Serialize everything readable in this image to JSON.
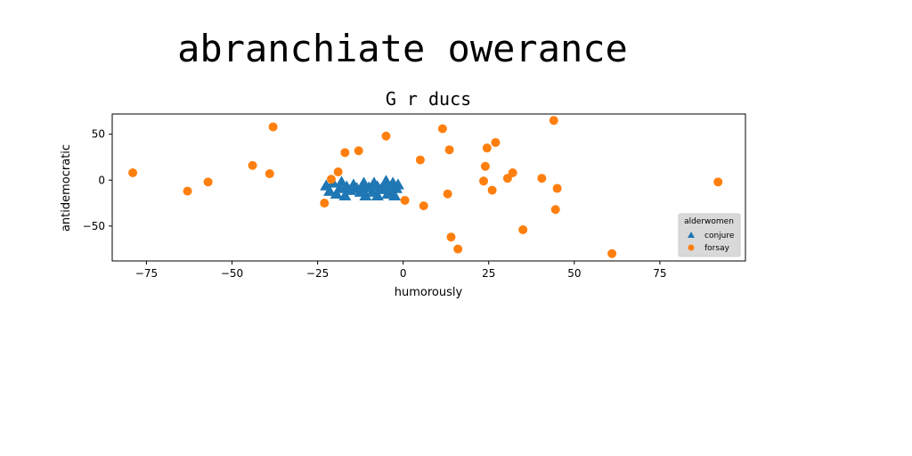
{
  "suptitle": "abranchiate owerance",
  "chart_data": {
    "type": "scatter",
    "title": "G r ducs",
    "xlabel": "humorously",
    "ylabel": "antidemocratic",
    "xlim": [
      -85,
      100
    ],
    "ylim": [
      -88,
      72
    ],
    "xticks": [
      -75,
      -50,
      -25,
      0,
      25,
      50,
      75
    ],
    "xtick_labels": [
      "−75",
      "−50",
      "−25",
      "0",
      "25",
      "50",
      "75"
    ],
    "yticks": [
      -50,
      0,
      50
    ],
    "ytick_labels": [
      "−50",
      "0",
      "50"
    ],
    "grid": false,
    "legend": {
      "title": "alderwomen",
      "placement": "lower-right"
    },
    "series": [
      {
        "name": "conjure",
        "marker": "triangle",
        "color": "#1f77b4",
        "points": [
          [
            -22.5,
            -6
          ],
          [
            -21.5,
            -12
          ],
          [
            -20.5,
            -3
          ],
          [
            -19.5,
            -15
          ],
          [
            -18.5,
            -9
          ],
          [
            -18,
            -2
          ],
          [
            -17,
            -17
          ],
          [
            -16.5,
            -7
          ],
          [
            -15.5,
            -11
          ],
          [
            -14.5,
            -5
          ],
          [
            -13.5,
            -9
          ],
          [
            -12.5,
            -13
          ],
          [
            -11.5,
            -3
          ],
          [
            -11,
            -17
          ],
          [
            -10,
            -8
          ],
          [
            -9,
            -13
          ],
          [
            -8.5,
            -3
          ],
          [
            -7.5,
            -17
          ],
          [
            -6.5,
            -10
          ],
          [
            -5.5,
            -5
          ],
          [
            -5,
            -1
          ],
          [
            -4.5,
            -15
          ],
          [
            -4,
            -8
          ],
          [
            -3.5,
            -12
          ],
          [
            -3,
            -3
          ],
          [
            -2.5,
            -17
          ],
          [
            -2,
            -9
          ],
          [
            -1.5,
            -5
          ],
          [
            -12,
            -9
          ],
          [
            -7.5,
            -7
          ]
        ]
      },
      {
        "name": "forsay",
        "marker": "circle",
        "color": "#ff7f0e",
        "points": [
          [
            -79,
            8
          ],
          [
            -63,
            -12
          ],
          [
            -57,
            -2
          ],
          [
            -44,
            16
          ],
          [
            -39,
            7
          ],
          [
            -38,
            58
          ],
          [
            -23,
            -25
          ],
          [
            -21,
            1
          ],
          [
            -19,
            9
          ],
          [
            -17,
            30
          ],
          [
            -13,
            32
          ],
          [
            -5,
            48
          ],
          [
            0.5,
            -22
          ],
          [
            5,
            22
          ],
          [
            6,
            -28
          ],
          [
            11.5,
            56
          ],
          [
            13,
            -15
          ],
          [
            13.5,
            33
          ],
          [
            14,
            -62
          ],
          [
            16,
            -75
          ],
          [
            23.5,
            -1
          ],
          [
            24,
            15
          ],
          [
            24.5,
            35
          ],
          [
            26,
            -11
          ],
          [
            27,
            41
          ],
          [
            30.5,
            2
          ],
          [
            32,
            8
          ],
          [
            35,
            -54
          ],
          [
            40.5,
            2
          ],
          [
            44,
            65
          ],
          [
            44.5,
            -32
          ],
          [
            45,
            -9
          ],
          [
            61,
            -80
          ],
          [
            92,
            -2
          ]
        ]
      }
    ]
  }
}
